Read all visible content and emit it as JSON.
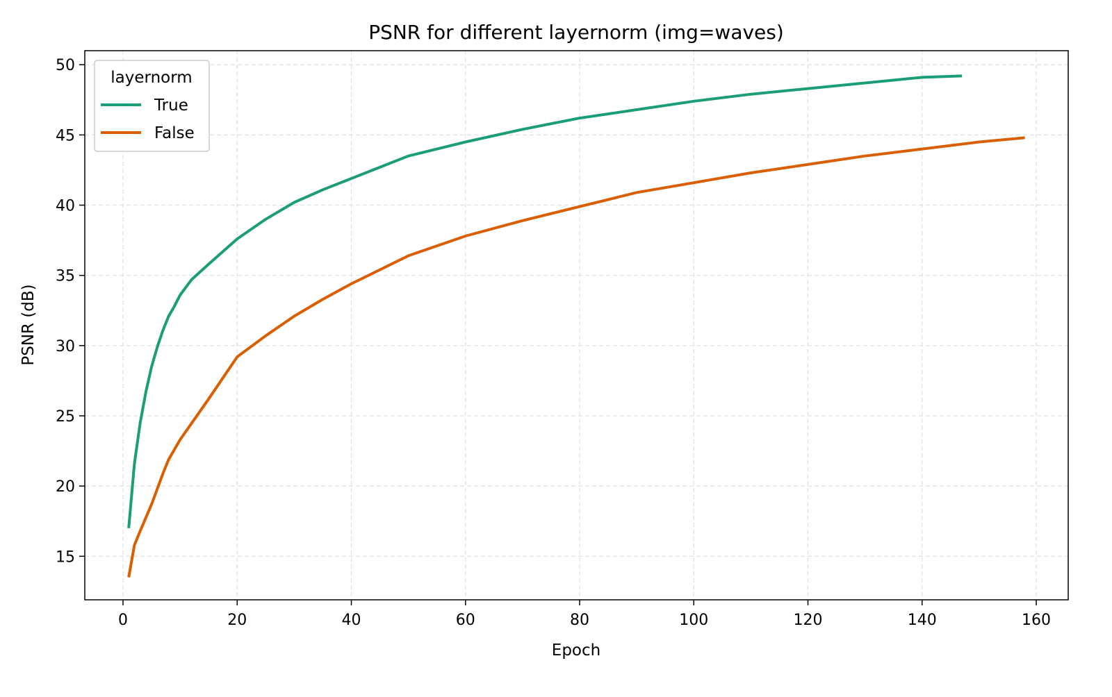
{
  "chart_data": {
    "type": "line",
    "title": "PSNR for different layernorm (img=waves)",
    "xlabel": "Epoch",
    "ylabel": "PSNR (dB)",
    "xlim": [
      -6.7,
      165.6
    ],
    "ylim": [
      11.9,
      51.0
    ],
    "xticks": [
      0,
      20,
      40,
      60,
      80,
      100,
      120,
      140,
      160
    ],
    "yticks": [
      15,
      20,
      25,
      30,
      35,
      40,
      45,
      50
    ],
    "grid": true,
    "legend": {
      "title": "layernorm",
      "placement": "top-left"
    },
    "series": [
      {
        "name": "True",
        "color": "#1b9e77",
        "x": [
          1,
          2,
          3,
          4,
          5,
          6,
          7,
          8,
          9,
          10,
          12,
          15,
          20,
          25,
          30,
          35,
          40,
          45,
          50,
          60,
          70,
          80,
          90,
          100,
          110,
          120,
          130,
          140,
          147
        ],
        "y": [
          17.0,
          21.6,
          24.5,
          26.7,
          28.5,
          29.9,
          31.1,
          32.1,
          32.8,
          33.6,
          34.7,
          35.8,
          37.6,
          39.0,
          40.2,
          41.1,
          41.9,
          42.7,
          43.5,
          44.5,
          45.4,
          46.2,
          46.8,
          47.4,
          47.9,
          48.3,
          48.7,
          49.1,
          49.2
        ]
      },
      {
        "name": "False",
        "color": "#d95f02",
        "x": [
          1,
          2,
          3,
          5,
          7,
          8,
          10,
          15,
          20,
          25,
          30,
          35,
          40,
          50,
          60,
          70,
          80,
          90,
          100,
          110,
          120,
          130,
          140,
          150,
          158
        ],
        "y": [
          13.5,
          15.8,
          16.8,
          18.7,
          20.9,
          21.9,
          23.3,
          26.2,
          29.2,
          30.7,
          32.1,
          33.3,
          34.4,
          36.4,
          37.8,
          38.9,
          39.9,
          40.9,
          41.6,
          42.3,
          42.9,
          43.5,
          44.0,
          44.5,
          44.8
        ]
      }
    ]
  }
}
